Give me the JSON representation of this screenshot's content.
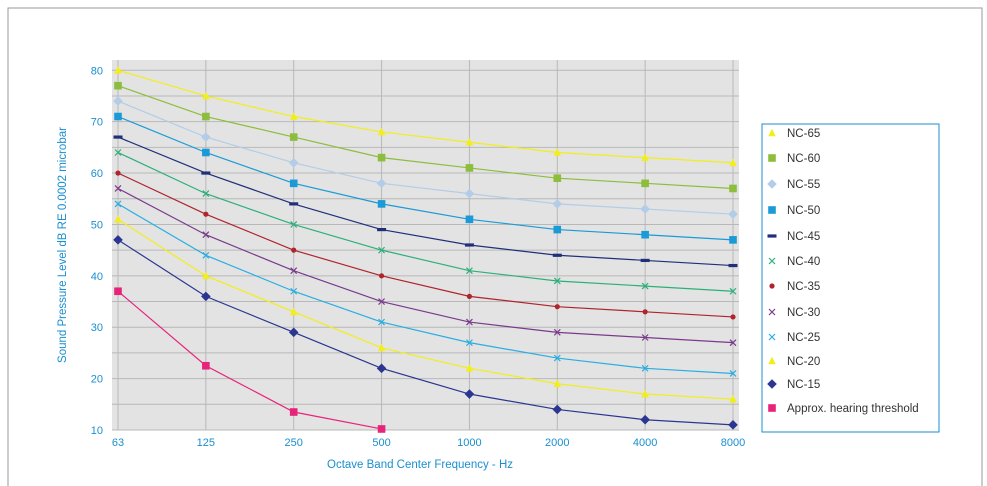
{
  "chart_data": {
    "type": "line",
    "xlabel": "Octave Band Center Frequency - Hz",
    "ylabel": "Sound Pressure Level dB RE 0.0002 microbar",
    "categories": [
      "63",
      "125",
      "250",
      "500",
      "1000",
      "2000",
      "4000",
      "8000"
    ],
    "yticks": [
      "10",
      "20",
      "30",
      "40",
      "50",
      "60",
      "70",
      "80"
    ],
    "ylim": [
      10,
      82
    ],
    "grid": true,
    "legend_position": "right",
    "series": [
      {
        "name": "NC-65",
        "color": "#f2ee1a",
        "marker": "triangle",
        "values": [
          80,
          75,
          71,
          68,
          66,
          64,
          63,
          62
        ]
      },
      {
        "name": "NC-60",
        "color": "#8dbd3c",
        "marker": "square",
        "values": [
          77,
          71,
          67,
          63,
          61,
          59,
          58,
          57
        ]
      },
      {
        "name": "NC-55",
        "color": "#b3cde8",
        "marker": "diamond",
        "values": [
          74,
          67,
          62,
          58,
          56,
          54,
          53,
          52
        ]
      },
      {
        "name": "NC-50",
        "color": "#1a9ad6",
        "marker": "square",
        "values": [
          71,
          64,
          58,
          54,
          51,
          49,
          48,
          47
        ]
      },
      {
        "name": "NC-45",
        "color": "#1f2f7a",
        "marker": "dash",
        "values": [
          67,
          60,
          54,
          49,
          46,
          44,
          43,
          42
        ]
      },
      {
        "name": "NC-40",
        "color": "#2bb07a",
        "marker": "x",
        "values": [
          64,
          56,
          50,
          45,
          41,
          39,
          38,
          37
        ]
      },
      {
        "name": "NC-35",
        "color": "#b0242c",
        "marker": "circle",
        "values": [
          60,
          52,
          45,
          40,
          36,
          34,
          33,
          32
        ]
      },
      {
        "name": "NC-30",
        "color": "#7b3a8c",
        "marker": "x",
        "values": [
          57,
          48,
          41,
          35,
          31,
          29,
          28,
          27
        ]
      },
      {
        "name": "NC-25",
        "color": "#29aee3",
        "marker": "x",
        "values": [
          54,
          44,
          37,
          31,
          27,
          24,
          22,
          21
        ]
      },
      {
        "name": "NC-20",
        "color": "#f2ee1a",
        "marker": "triangle",
        "values": [
          51,
          40,
          33,
          26,
          22,
          19,
          17,
          16
        ]
      },
      {
        "name": "NC-15",
        "color": "#2b3690",
        "marker": "diamond",
        "values": [
          47,
          36,
          29,
          22,
          17,
          14,
          12,
          11
        ]
      },
      {
        "name": "Approx. hearing threshold",
        "color": "#e8237a",
        "marker": "square",
        "values": [
          37,
          22.5,
          13.5,
          10.2,
          null,
          null,
          null,
          null
        ]
      }
    ]
  }
}
